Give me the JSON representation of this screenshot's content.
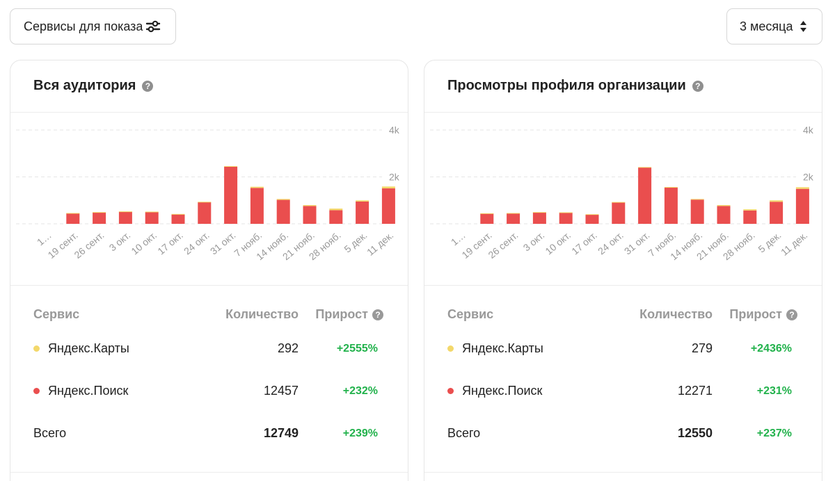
{
  "toolbar": {
    "services_label": "Сервисы для показа",
    "period_label": "3 месяца"
  },
  "icons": {
    "services": "sliders-icon",
    "period": "sort-arrows-icon",
    "help": "question-circle-icon"
  },
  "colors": {
    "maps": "#f3d86b",
    "search": "#ea4e4e",
    "growth": "#22b24c"
  },
  "table_headers": {
    "service": "Сервис",
    "count": "Количество",
    "growth": "Прирост"
  },
  "cards": [
    {
      "title": "Вся аудитория",
      "rows": [
        {
          "service": "Яндекс.Карты",
          "count": "292",
          "growth": "+2555%"
        },
        {
          "service": "Яндекс.Поиск",
          "count": "12457",
          "growth": "+232%"
        },
        {
          "service": "Всего",
          "count": "12749",
          "growth": "+239%"
        }
      ]
    },
    {
      "title": "Просмотры профиля организации",
      "rows": [
        {
          "service": "Яндекс.Карты",
          "count": "279",
          "growth": "+2436%"
        },
        {
          "service": "Яндекс.Поиск",
          "count": "12271",
          "growth": "+231%"
        },
        {
          "service": "Всего",
          "count": "12550",
          "growth": "+237%"
        }
      ]
    }
  ],
  "chart_data": [
    {
      "type": "bar",
      "stacked": true,
      "categories": [
        "1…",
        "19 сент.",
        "26 сент.",
        "3 окт.",
        "10 окт.",
        "17 окт.",
        "24 окт.",
        "31 окт.",
        "7 нояб.",
        "14 нояб.",
        "21 нояб.",
        "28 нояб.",
        "5 дек.",
        "11 дек."
      ],
      "y_ticks": [
        "2k",
        "4k"
      ],
      "ylim": [
        0,
        4000
      ],
      "grid": true,
      "series": [
        {
          "name": "Яндекс.Поиск",
          "values": [
            0,
            450,
            490,
            520,
            500,
            410,
            920,
            2430,
            1530,
            1020,
            760,
            580,
            950,
            1510
          ]
        },
        {
          "name": "Яндекс.Карты",
          "values": [
            0,
            10,
            10,
            10,
            20,
            10,
            20,
            30,
            50,
            40,
            40,
            70,
            50,
            80
          ]
        }
      ]
    },
    {
      "type": "bar",
      "stacked": true,
      "categories": [
        "1…",
        "19 сент.",
        "26 сент.",
        "3 окт.",
        "10 окт.",
        "17 окт.",
        "24 окт.",
        "31 окт.",
        "7 нояб.",
        "14 нояб.",
        "21 нояб.",
        "28 нояб.",
        "5 дек.",
        "11 дек."
      ],
      "y_ticks": [
        "2k",
        "4k"
      ],
      "ylim": [
        0,
        4000
      ],
      "grid": true,
      "series": [
        {
          "name": "Яндекс.Поиск",
          "values": [
            0,
            440,
            450,
            490,
            480,
            400,
            910,
            2400,
            1540,
            1030,
            760,
            570,
            940,
            1490
          ]
        },
        {
          "name": "Яндекс.Карты",
          "values": [
            0,
            10,
            10,
            10,
            10,
            10,
            20,
            20,
            30,
            30,
            40,
            50,
            60,
            70
          ]
        }
      ]
    }
  ]
}
